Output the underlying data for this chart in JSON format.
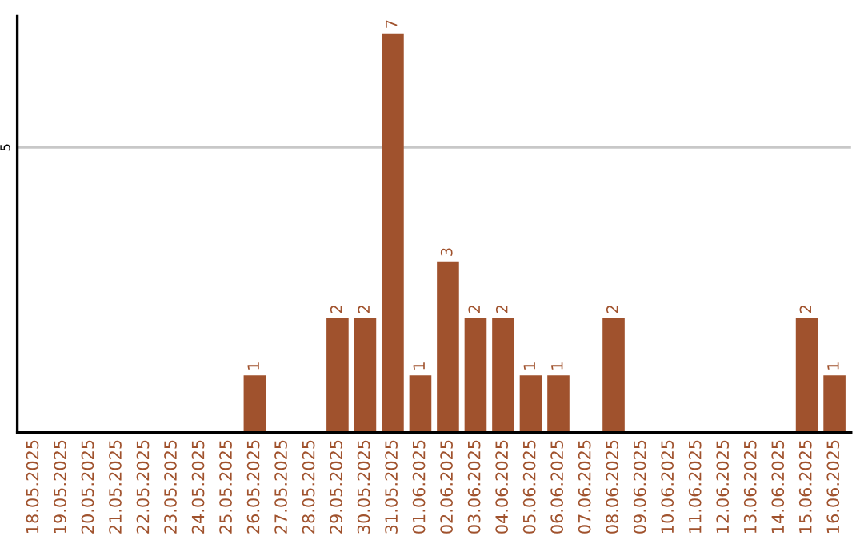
{
  "chart_data": {
    "type": "bar",
    "categories": [
      "18.05.2025",
      "19.05.2025",
      "20.05.2025",
      "21.05.2025",
      "22.05.2025",
      "23.05.2025",
      "24.05.2025",
      "25.05.2025",
      "26.05.2025",
      "27.05.2025",
      "28.05.2025",
      "29.05.2025",
      "30.05.2025",
      "31.05.2025",
      "01.06.2025",
      "02.06.2025",
      "03.06.2025",
      "04.06.2025",
      "05.06.2025",
      "06.06.2025",
      "07.06.2025",
      "08.06.2025",
      "09.06.2025",
      "10.06.2025",
      "11.06.2025",
      "12.06.2025",
      "13.06.2025",
      "14.06.2025",
      "15.06.2025",
      "16.06.2025"
    ],
    "values": [
      0,
      0,
      0,
      0,
      0,
      0,
      0,
      0,
      1,
      0,
      0,
      2,
      2,
      7,
      1,
      3,
      2,
      2,
      1,
      1,
      0,
      2,
      0,
      0,
      0,
      0,
      0,
      0,
      2,
      1
    ],
    "value_labels": [
      null,
      null,
      null,
      null,
      null,
      null,
      null,
      null,
      "1",
      null,
      null,
      "2",
      "2",
      "7",
      "1",
      "3",
      "2",
      "2",
      "1",
      "1",
      null,
      "2",
      null,
      null,
      null,
      null,
      null,
      null,
      "2",
      "1"
    ],
    "color": "#a0522d",
    "ylim": [
      0,
      7.3
    ],
    "yticks": [
      5
    ],
    "grid": "y"
  }
}
